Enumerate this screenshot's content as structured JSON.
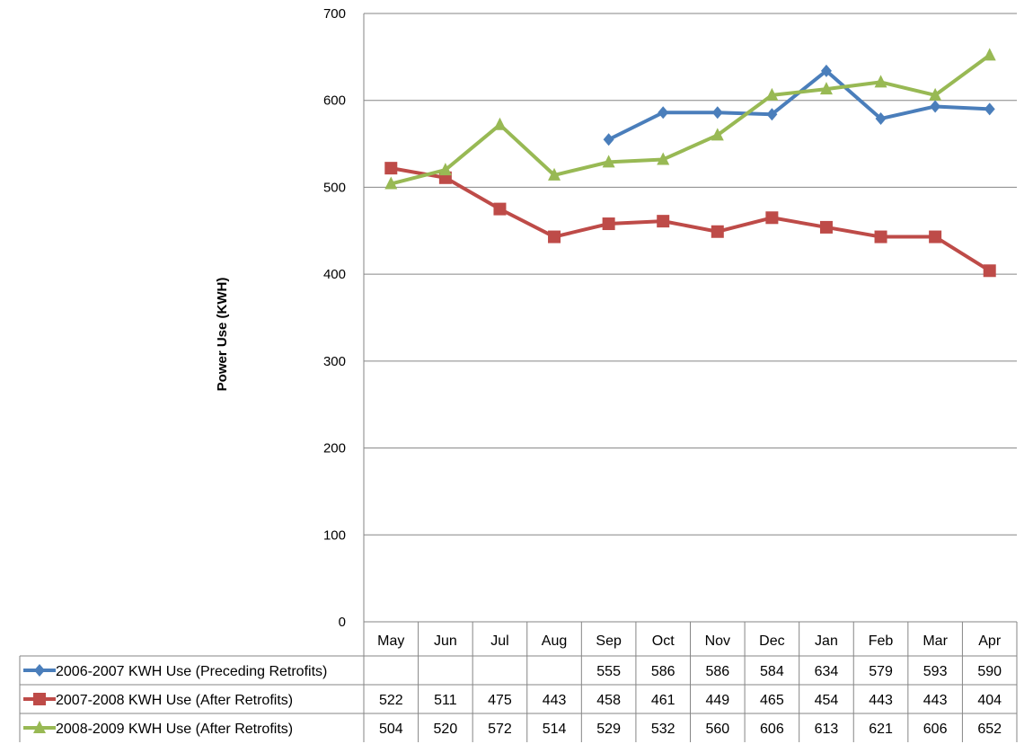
{
  "chart_data": {
    "type": "line",
    "title": "",
    "xlabel": "",
    "ylabel": "Power Use (KWH)",
    "ylim": [
      0,
      700
    ],
    "yticks": [
      0,
      100,
      200,
      300,
      400,
      500,
      600,
      700
    ],
    "ytick_labels": [
      "0",
      "100",
      "200",
      "300",
      "400",
      "500",
      "600",
      "700"
    ],
    "grid": true,
    "legend_placement": "data-table-bottom",
    "categories": [
      "May",
      "Jun",
      "Jul",
      "Aug",
      "Sep",
      "Oct",
      "Nov",
      "Dec",
      "Jan",
      "Feb",
      "Mar",
      "Apr"
    ],
    "series": [
      {
        "name": "2006-2007 KWH Use (Preceding Retrofits)",
        "color": "#4a7ebb",
        "marker": "diamond",
        "values": [
          null,
          null,
          null,
          null,
          555,
          586,
          586,
          584,
          634,
          579,
          593,
          590
        ]
      },
      {
        "name": "2007-2008 KWH Use (After Retrofits)",
        "color": "#be4b48",
        "marker": "square",
        "values": [
          522,
          511,
          475,
          443,
          458,
          461,
          449,
          465,
          454,
          443,
          443,
          404
        ]
      },
      {
        "name": "2008-2009 KWH Use (After Retrofits)",
        "color": "#98b954",
        "marker": "triangle",
        "values": [
          504,
          520,
          572,
          514,
          529,
          532,
          560,
          606,
          613,
          621,
          606,
          652
        ]
      }
    ]
  }
}
